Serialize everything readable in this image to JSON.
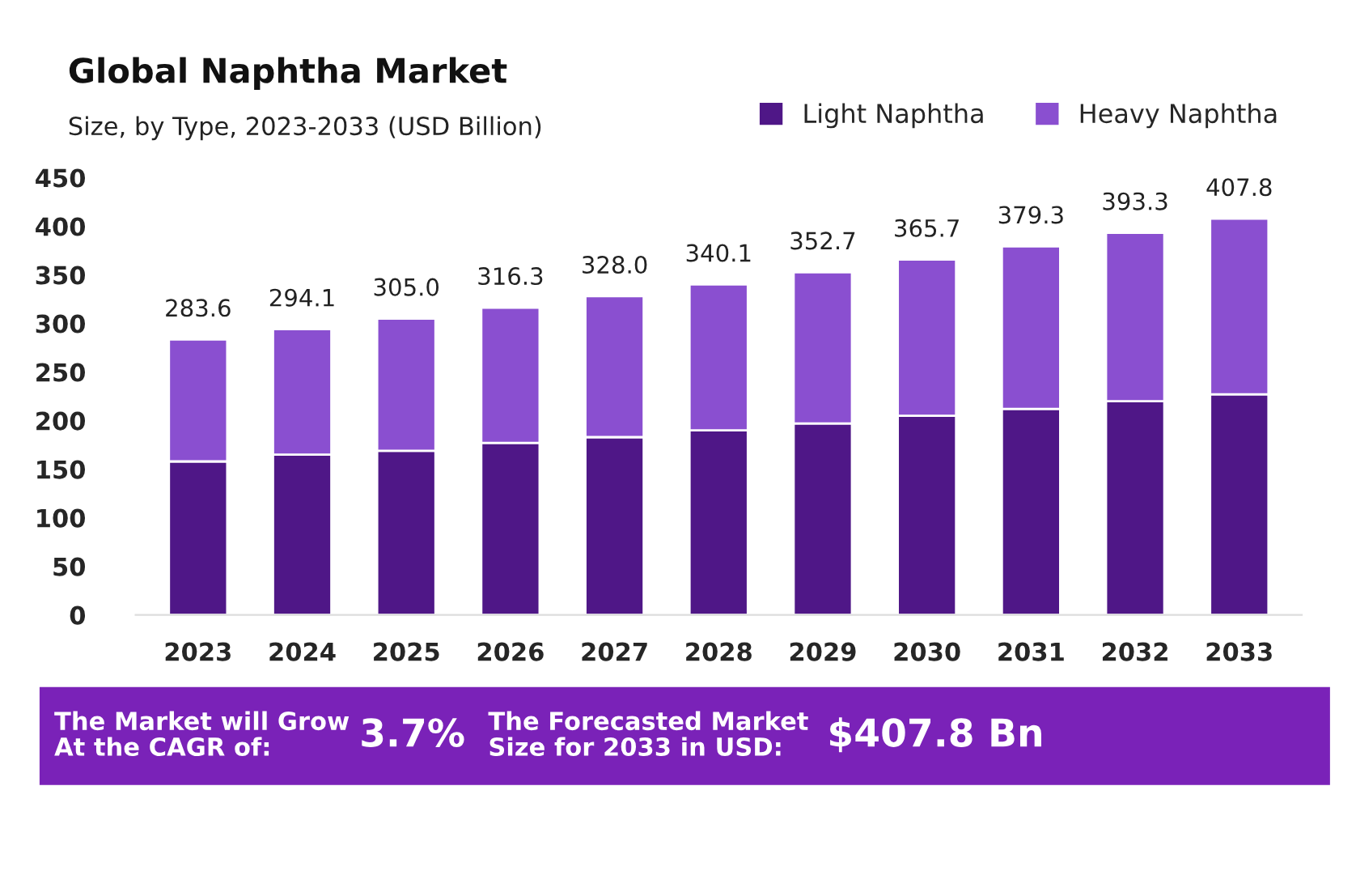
{
  "chart_data": {
    "type": "bar",
    "title": "Global Naphtha Market",
    "subtitle": "Size, by Type, 2023-2033 (USD Billion)",
    "categories": [
      "2023",
      "2024",
      "2025",
      "2026",
      "2027",
      "2028",
      "2029",
      "2030",
      "2031",
      "2032",
      "2033"
    ],
    "stacked": true,
    "series": [
      {
        "name": "Light Naphtha",
        "color": "#4f1787",
        "values": [
          158,
          165,
          169,
          177,
          183,
          190,
          197,
          205,
          212,
          220,
          227
        ]
      },
      {
        "name": "Heavy Naphtha",
        "color": "#8a4fd0",
        "values": [
          125.6,
          129.1,
          136.0,
          139.3,
          145.0,
          150.1,
          155.7,
          160.7,
          167.3,
          173.3,
          180.8
        ]
      }
    ],
    "totals": [
      "283.6",
      "294.1",
      "305.0",
      "316.3",
      "328.0",
      "340.1",
      "352.7",
      "365.7",
      "379.3",
      "393.3",
      "407.8"
    ],
    "ylim": [
      0,
      450
    ],
    "yticks": [
      0,
      50,
      100,
      150,
      200,
      250,
      300,
      350,
      400,
      450
    ],
    "grid": false,
    "legend": "top right",
    "annotations": [
      "The Market will Grow\nAt the CAGR of:",
      "3.7%",
      "The Forecasted Market\nSize for 2033 in USD:",
      "$407.8 Bn"
    ]
  }
}
